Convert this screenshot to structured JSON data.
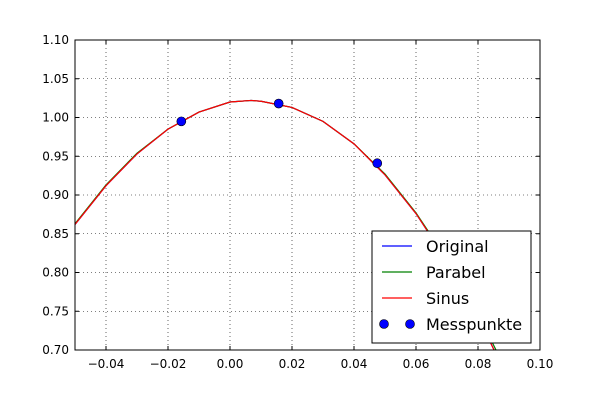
{
  "chart_data": {
    "type": "line",
    "title": "",
    "xlabel": "",
    "ylabel": "",
    "xlim": [
      -0.05,
      0.1
    ],
    "ylim": [
      0.7,
      1.1
    ],
    "grid": true,
    "legend_position": "bottom-right",
    "x_ticks": [
      "−0.04",
      "−0.02",
      "0.00",
      "0.02",
      "0.04",
      "0.06",
      "0.08",
      "0.10"
    ],
    "x_tick_values": [
      -0.04,
      -0.02,
      0.0,
      0.02,
      0.04,
      0.06,
      0.08,
      0.1
    ],
    "y_ticks": [
      "0.70",
      "0.75",
      "0.80",
      "0.85",
      "0.90",
      "0.95",
      "1.00",
      "1.05",
      "1.10"
    ],
    "y_tick_values": [
      0.7,
      0.75,
      0.8,
      0.85,
      0.9,
      0.95,
      1.0,
      1.05,
      1.1
    ],
    "series": [
      {
        "name": "Original",
        "kind": "line",
        "color": "#0000ff",
        "x": [
          -0.05,
          -0.04,
          -0.03,
          -0.02,
          -0.01,
          0.0,
          0.0068,
          0.01,
          0.02,
          0.03,
          0.04,
          0.05,
          0.06,
          0.07,
          0.08,
          0.09
        ],
        "y": [
          0.862,
          0.912,
          0.953,
          0.985,
          1.007,
          1.02,
          1.022,
          1.021,
          1.013,
          0.995,
          0.966,
          0.926,
          0.876,
          0.815,
          0.743,
          0.66
        ]
      },
      {
        "name": "Parabel",
        "kind": "line",
        "color": "#008000",
        "x": [
          -0.05,
          -0.04,
          -0.03,
          -0.02,
          -0.01,
          0.0,
          0.0068,
          0.01,
          0.02,
          0.03,
          0.04,
          0.05,
          0.06,
          0.07,
          0.08,
          0.09
        ],
        "y": [
          0.863,
          0.913,
          0.954,
          0.985,
          1.007,
          1.02,
          1.022,
          1.021,
          1.013,
          0.995,
          0.966,
          0.927,
          0.877,
          0.817,
          0.747,
          0.666
        ]
      },
      {
        "name": "Sinus",
        "kind": "line",
        "color": "#ff0000",
        "x": [
          -0.05,
          -0.04,
          -0.03,
          -0.02,
          -0.01,
          0.0,
          0.0068,
          0.01,
          0.02,
          0.03,
          0.04,
          0.05,
          0.06,
          0.07,
          0.08,
          0.09
        ],
        "y": [
          0.862,
          0.912,
          0.953,
          0.985,
          1.007,
          1.02,
          1.022,
          1.021,
          1.013,
          0.995,
          0.966,
          0.926,
          0.876,
          0.815,
          0.743,
          0.66
        ]
      },
      {
        "name": "Messpunkte",
        "kind": "scatter",
        "color": "#0000ff",
        "x": [
          -0.0157,
          0.0157,
          0.0475
        ],
        "y": [
          0.995,
          1.018,
          0.941
        ]
      }
    ]
  }
}
